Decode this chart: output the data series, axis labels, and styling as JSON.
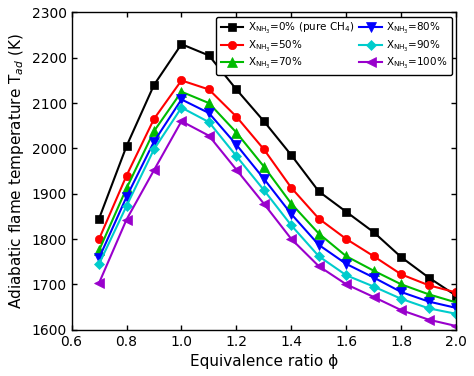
{
  "phi": [
    0.7,
    0.8,
    0.9,
    1.0,
    1.1,
    1.2,
    1.3,
    1.4,
    1.5,
    1.6,
    1.7,
    1.8,
    1.9,
    2.0
  ],
  "series": [
    {
      "label": "X$_{{\\rm NH}_3}$=0% (pure CH$_4$)",
      "color": "#000000",
      "marker": "s",
      "markersize": 6,
      "values": [
        1845,
        2005,
        2140,
        2230,
        2205,
        2130,
        2060,
        1985,
        1905,
        1860,
        1815,
        1760,
        1715,
        1675
      ]
    },
    {
      "label": "X$_{{\\rm NH}_3}$=50%",
      "color": "#ff0000",
      "marker": "o",
      "markersize": 6,
      "values": [
        1800,
        1940,
        2065,
        2150,
        2130,
        2070,
        1998,
        1913,
        1845,
        1800,
        1762,
        1722,
        1698,
        1682
      ]
    },
    {
      "label": "X$_{{\\rm NH}_3}$=70%",
      "color": "#00bb00",
      "marker": "^",
      "markersize": 7,
      "values": [
        1775,
        1912,
        2038,
        2125,
        2100,
        2035,
        1960,
        1878,
        1812,
        1762,
        1730,
        1700,
        1678,
        1660
      ]
    },
    {
      "label": "X$_{{\\rm NH}_3}$=80%",
      "color": "#0000ff",
      "marker": "v",
      "markersize": 7,
      "values": [
        1758,
        1893,
        2015,
        2108,
        2078,
        2008,
        1933,
        1855,
        1787,
        1745,
        1715,
        1683,
        1662,
        1648
      ]
    },
    {
      "label": "X$_{{\\rm NH}_3}$=90%",
      "color": "#00cccc",
      "marker": "D",
      "markersize": 5,
      "values": [
        1745,
        1873,
        1998,
        2090,
        2058,
        1983,
        1908,
        1830,
        1762,
        1720,
        1695,
        1668,
        1647,
        1635
      ]
    },
    {
      "label": "X$_{{\\rm NH}_3}$=100%",
      "color": "#9900cc",
      "marker": "<",
      "markersize": 7,
      "values": [
        1703,
        1843,
        1952,
        2060,
        2028,
        1953,
        1878,
        1800,
        1740,
        1700,
        1672,
        1643,
        1622,
        1608
      ]
    }
  ],
  "legend_order": [
    0,
    4,
    1,
    3,
    2,
    5
  ],
  "xlabel": "Equivalence ratio ϕ",
  "ylabel": "Adiabatic flame temperature T$_{ad}$ (K)",
  "xlim": [
    0.6,
    2.0
  ],
  "ylim": [
    1600,
    2300
  ],
  "xticks": [
    0.6,
    0.8,
    1.0,
    1.2,
    1.4,
    1.6,
    1.8,
    2.0
  ],
  "yticks": [
    1600,
    1700,
    1800,
    1900,
    2000,
    2100,
    2200,
    2300
  ],
  "background_color": "#ffffff",
  "legend_fontsize": 7.5,
  "axis_fontsize": 11,
  "tick_fontsize": 10
}
